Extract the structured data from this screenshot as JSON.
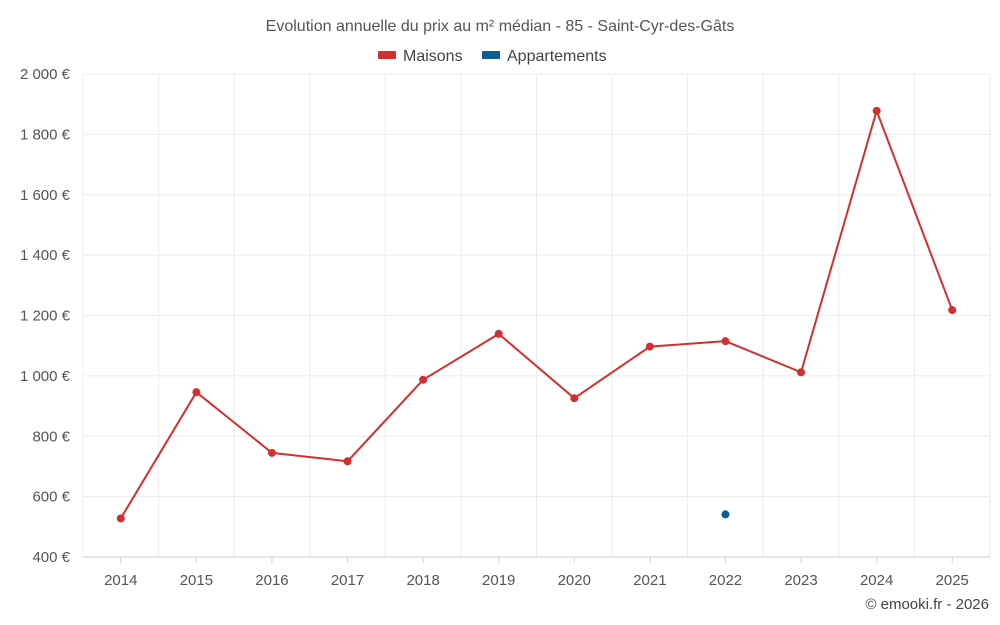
{
  "chart_data": {
    "type": "line",
    "title": "Evolution annuelle du prix au m² médian - 85 - Saint-Cyr-des-Gâts",
    "x": [
      "2014",
      "2015",
      "2016",
      "2017",
      "2018",
      "2019",
      "2020",
      "2021",
      "2022",
      "2023",
      "2024",
      "2025"
    ],
    "ylim": [
      400,
      2000
    ],
    "yticks": [
      400,
      600,
      800,
      1000,
      1200,
      1400,
      1600,
      1800,
      2000
    ],
    "ytick_labels": [
      "400 €",
      "600 €",
      "800 €",
      "1 000 €",
      "1 200 €",
      "1 400 €",
      "1 600 €",
      "1 800 €",
      "2 000 €"
    ],
    "grid": true,
    "legend_position": "top-center",
    "series": [
      {
        "name": "Maisons",
        "color": "#d32f2f",
        "values": [
          528,
          946,
          745,
          717,
          987,
          1139,
          926,
          1097,
          1115,
          1012,
          1878,
          1218
        ]
      },
      {
        "name": "Appartements",
        "color": "#0d5c91",
        "values": [
          null,
          null,
          null,
          null,
          null,
          null,
          null,
          null,
          541,
          null,
          null,
          null
        ]
      }
    ]
  },
  "credit": "© emooki.fr - 2026"
}
